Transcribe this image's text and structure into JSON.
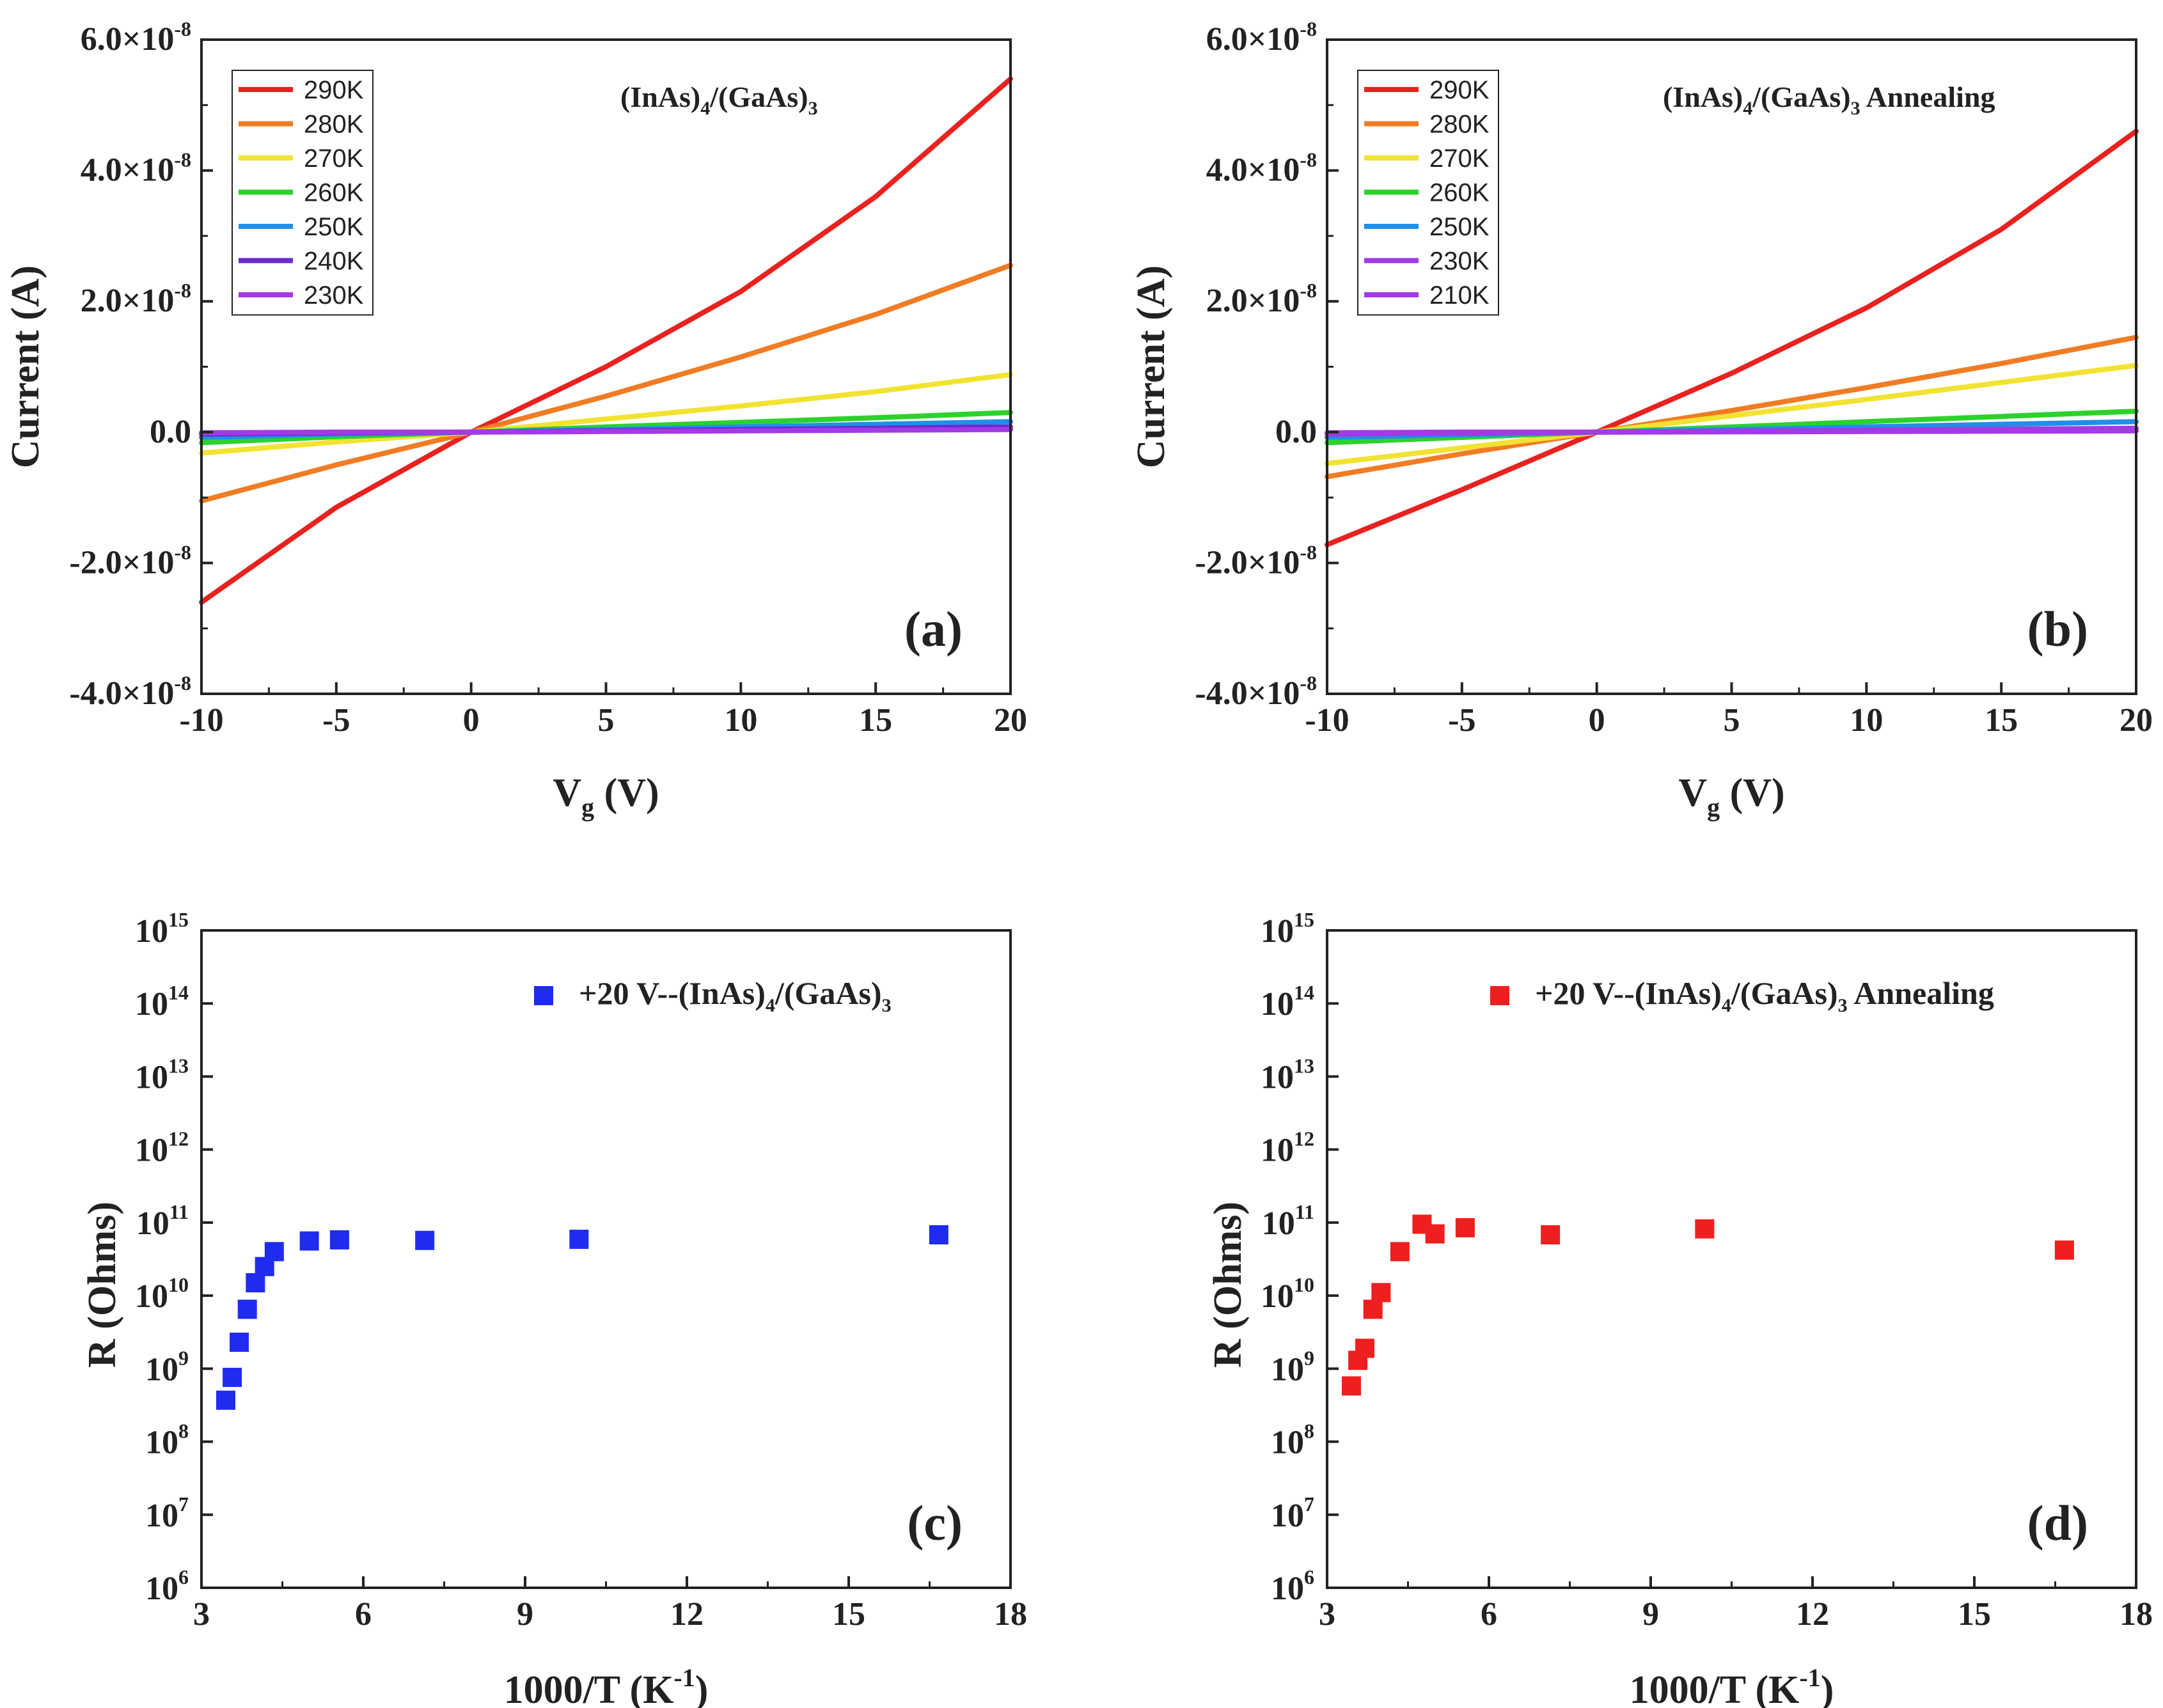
{
  "colors": {
    "290K": "#e8221f",
    "280K": "#f07c24",
    "270K": "#f2e332",
    "260K": "#2cd22c",
    "250K": "#1f8fe8",
    "240K": "#6a2ad0",
    "230K": "#a23ae6",
    "210K": "#a23ae6",
    "blue_marker": "#1f2cf0",
    "red_marker": "#f01f1f"
  },
  "chart_data": [
    {
      "id": "a",
      "type": "line",
      "panel_label": "(a)",
      "title": "(InAs)4/(GaAs)3",
      "xlabel": "Vg (V)",
      "ylabel": "Current (A)",
      "xlim": [
        -10,
        20
      ],
      "ylim": [
        -4e-08,
        6e-08
      ],
      "xticks": [
        "-10",
        "-5",
        "0",
        "5",
        "10",
        "15",
        "20"
      ],
      "yticks": [
        {
          "mant": "-4.0×10",
          "exp": "-8"
        },
        {
          "mant": "-2.0×10",
          "exp": "-8"
        },
        {
          "mant": "0.0",
          "exp": ""
        },
        {
          "mant": "2.0×10",
          "exp": "-8"
        },
        {
          "mant": "4.0×10",
          "exp": "-8"
        },
        {
          "mant": "6.0×10",
          "exp": "-8"
        }
      ],
      "legend": [
        "290K",
        "280K",
        "270K",
        "260K",
        "250K",
        "240K",
        "230K"
      ],
      "series": [
        {
          "name": "290K",
          "x": [
            -10,
            -5,
            0,
            5,
            10,
            15,
            20
          ],
          "y": [
            -2.6e-08,
            -1.15e-08,
            0.0,
            1e-08,
            2.15e-08,
            3.6e-08,
            5.4e-08
          ]
        },
        {
          "name": "280K",
          "x": [
            -10,
            -5,
            0,
            5,
            10,
            15,
            20
          ],
          "y": [
            -1.05e-08,
            -5e-09,
            0.0,
            5.5e-09,
            1.15e-08,
            1.8e-08,
            2.55e-08
          ]
        },
        {
          "name": "270K",
          "x": [
            -10,
            -5,
            0,
            5,
            10,
            15,
            20
          ],
          "y": [
            -3.2e-09,
            -1.5e-09,
            0.0,
            2e-09,
            4e-09,
            6.2e-09,
            8.8e-09
          ]
        },
        {
          "name": "260K",
          "x": [
            -10,
            -5,
            0,
            5,
            10,
            15,
            20
          ],
          "y": [
            -1.6e-09,
            -7e-10,
            0.0,
            8e-10,
            1.5e-09,
            2.2e-09,
            3e-09
          ]
        },
        {
          "name": "250K",
          "x": [
            -10,
            -5,
            0,
            5,
            10,
            15,
            20
          ],
          "y": [
            -8e-10,
            -3e-10,
            0.0,
            4e-10,
            8e-10,
            1.2e-09,
            1.6e-09
          ]
        },
        {
          "name": "240K",
          "x": [
            -10,
            -5,
            0,
            5,
            10,
            15,
            20
          ],
          "y": [
            -3e-10,
            -1e-10,
            0.0,
            2e-10,
            4e-10,
            6e-10,
            8e-10
          ]
        },
        {
          "name": "230K",
          "x": [
            -10,
            -5,
            0,
            5,
            10,
            15,
            20
          ],
          "y": [
            -1e-10,
            0.0,
            0.0,
            1e-10,
            2e-10,
            3e-10,
            4e-10
          ]
        }
      ]
    },
    {
      "id": "b",
      "type": "line",
      "panel_label": "(b)",
      "title": "(InAs)4/(GaAs)3 Annealing",
      "xlabel": "Vg (V)",
      "ylabel": "Current (A)",
      "xlim": [
        -10,
        20
      ],
      "ylim": [
        -4e-08,
        6e-08
      ],
      "xticks": [
        "-10",
        "-5",
        "0",
        "5",
        "10",
        "15",
        "20"
      ],
      "yticks": [
        {
          "mant": "-4.0×10",
          "exp": "-8"
        },
        {
          "mant": "-2.0×10",
          "exp": "-8"
        },
        {
          "mant": "0.0",
          "exp": ""
        },
        {
          "mant": "2.0×10",
          "exp": "-8"
        },
        {
          "mant": "4.0×10",
          "exp": "-8"
        },
        {
          "mant": "6.0×10",
          "exp": "-8"
        }
      ],
      "legend": [
        "290K",
        "280K",
        "270K",
        "260K",
        "250K",
        "230K",
        "210K"
      ],
      "series": [
        {
          "name": "290K",
          "x": [
            -10,
            -5,
            0,
            5,
            10,
            15,
            20
          ],
          "y": [
            -1.72e-08,
            -8.8e-09,
            0.0,
            9e-09,
            1.9e-08,
            3.1e-08,
            4.6e-08
          ]
        },
        {
          "name": "280K",
          "x": [
            -10,
            -5,
            0,
            5,
            10,
            15,
            20
          ],
          "y": [
            -6.8e-09,
            -3.3e-09,
            0.0,
            3.3e-09,
            6.8e-09,
            1.05e-08,
            1.45e-08
          ]
        },
        {
          "name": "270K",
          "x": [
            -10,
            -5,
            0,
            5,
            10,
            15,
            20
          ],
          "y": [
            -4.8e-09,
            -2.4e-09,
            0.0,
            2.5e-09,
            5e-09,
            7.6e-09,
            1.02e-08
          ]
        },
        {
          "name": "260K",
          "x": [
            -10,
            -5,
            0,
            5,
            10,
            15,
            20
          ],
          "y": [
            -1.6e-09,
            -8e-10,
            0.0,
            8e-10,
            1.6e-09,
            2.4e-09,
            3.2e-09
          ]
        },
        {
          "name": "250K",
          "x": [
            -10,
            -5,
            0,
            5,
            10,
            15,
            20
          ],
          "y": [
            -8e-10,
            -4e-10,
            0.0,
            4e-10,
            8e-10,
            1.2e-09,
            1.6e-09
          ]
        },
        {
          "name": "230K",
          "x": [
            -10,
            -5,
            0,
            5,
            10,
            15,
            20
          ],
          "y": [
            -3e-10,
            -1.5e-10,
            0.0,
            1.5e-10,
            3e-10,
            4.5e-10,
            6e-10
          ]
        },
        {
          "name": "210K",
          "x": [
            -10,
            -5,
            0,
            5,
            10,
            15,
            20
          ],
          "y": [
            -1e-10,
            0.0,
            0.0,
            5e-11,
            1e-10,
            1.5e-10,
            2e-10
          ]
        }
      ]
    },
    {
      "id": "c",
      "type": "scatter",
      "panel_label": "(c)",
      "xlabel": "1000/T (K-1)",
      "ylabel": "R (Ohms)",
      "yscale": "log",
      "xlim": [
        3,
        18
      ],
      "ylim_exp": [
        6,
        15
      ],
      "xticks": [
        "3",
        "6",
        "9",
        "12",
        "15",
        "18"
      ],
      "yticks_exp": [
        "6",
        "7",
        "8",
        "9",
        "10",
        "11",
        "12",
        "13",
        "14",
        "15"
      ],
      "legend": "+20 V--(InAs)4/(GaAs)3",
      "marker_color_key": "blue_marker",
      "points": {
        "x": [
          3.45,
          3.57,
          3.7,
          3.85,
          4.0,
          4.17,
          4.35,
          5.0,
          5.56,
          7.14,
          10.0,
          16.67
        ],
        "y": [
          370000000.0,
          760000000.0,
          2300000000.0,
          6500000000.0,
          15000000000.0,
          25000000000.0,
          40000000000.0,
          56000000000.0,
          58000000000.0,
          57000000000.0,
          59000000000.0,
          68000000000.0
        ]
      }
    },
    {
      "id": "d",
      "type": "scatter",
      "panel_label": "(d)",
      "xlabel": "1000/T (K-1)",
      "ylabel": "R (Ohms)",
      "yscale": "log",
      "xlim": [
        3,
        18
      ],
      "ylim_exp": [
        6,
        15
      ],
      "xticks": [
        "3",
        "6",
        "9",
        "12",
        "15",
        "18"
      ],
      "yticks_exp": [
        "6",
        "7",
        "8",
        "9",
        "10",
        "11",
        "12",
        "13",
        "14",
        "15"
      ],
      "legend": "+20 V--(InAs)4/(GaAs)3 Annealing",
      "marker_color_key": "red_marker",
      "points": {
        "x": [
          3.45,
          3.57,
          3.7,
          3.85,
          4.0,
          4.35,
          4.76,
          5.0,
          5.56,
          7.14,
          10.0,
          16.67
        ],
        "y": [
          580000000.0,
          1300000000.0,
          1900000000.0,
          6500000000.0,
          11000000000.0,
          40000000000.0,
          95000000000.0,
          70000000000.0,
          85000000000.0,
          68000000000.0,
          82000000000.0,
          42000000000.0
        ]
      }
    }
  ]
}
